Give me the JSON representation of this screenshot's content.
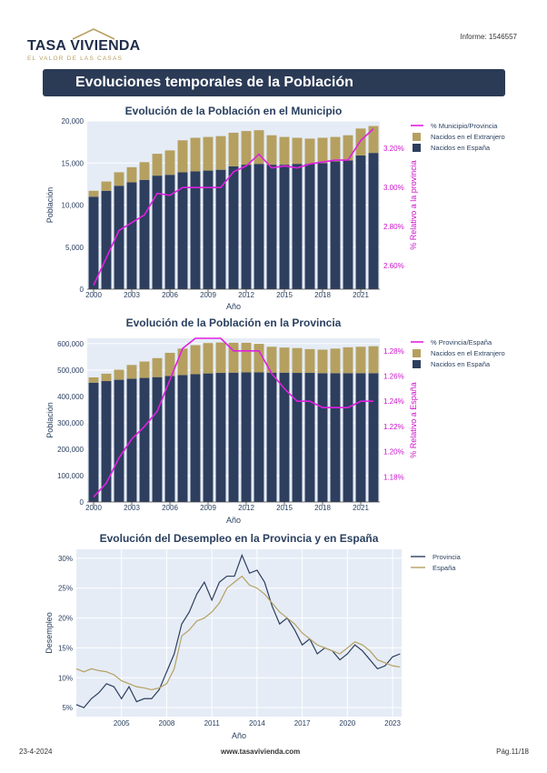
{
  "header": {
    "brand": "TASA VIVIENDA",
    "tagline": "EL VALOR DE LAS CASAS",
    "report_id": "Informe: 1546557"
  },
  "banner": {
    "title": "Evoluciones temporales de la Población"
  },
  "footer": {
    "date": "23-4-2024",
    "website": "www.tasavivienda.com",
    "page": "Pág.11/18"
  },
  "colors": {
    "spain": "#2d3e5e",
    "foreign": "#b5a060",
    "pct": "#e020e0",
    "grid_bg": "#e5ecf6",
    "prov_line": "#2d3e5e",
    "esp_line": "#b5a060"
  },
  "chart_data": [
    {
      "type": "bar",
      "title": "Evolución de la Población en el Municipio",
      "xlabel": "Año",
      "ylabel": "Población",
      "y2label": "% Relativo a la provincia",
      "legend": [
        "% Municipio/Provincia",
        "Nacidos en el Extranjero",
        "Nacidos en España"
      ],
      "x": [
        2000,
        2001,
        2002,
        2003,
        2004,
        2005,
        2006,
        2007,
        2008,
        2009,
        2010,
        2011,
        2012,
        2013,
        2014,
        2015,
        2016,
        2017,
        2018,
        2019,
        2020,
        2021,
        2022
      ],
      "xticks": [
        2000,
        2003,
        2006,
        2009,
        2012,
        2015,
        2018,
        2021
      ],
      "ylim": [
        0,
        20000
      ],
      "yticks": [
        0,
        5000,
        10000,
        15000,
        20000
      ],
      "ytick_labels": [
        "0",
        "5,000",
        "10,000",
        "15,000",
        "20,000"
      ],
      "y2lim": [
        2.48,
        3.34
      ],
      "y2ticks": [
        2.6,
        2.8,
        3.0,
        3.2
      ],
      "y2tick_labels": [
        "2.60%",
        "2.80%",
        "3.00%",
        "3.20%"
      ],
      "series": [
        {
          "name": "Nacidos en España",
          "values": [
            11000,
            11700,
            12300,
            12700,
            13000,
            13500,
            13600,
            13900,
            14000,
            14100,
            14200,
            14600,
            14800,
            14900,
            14800,
            14800,
            14900,
            14900,
            15000,
            15200,
            15300,
            15900,
            16200
          ]
        },
        {
          "name": "Nacidos en el Extranjero",
          "values": [
            700,
            1100,
            1600,
            1800,
            2100,
            2600,
            2900,
            3800,
            4000,
            4000,
            4000,
            4000,
            4000,
            4000,
            3500,
            3300,
            3100,
            3000,
            3000,
            2900,
            3000,
            3200,
            3200
          ]
        },
        {
          "name": "% Municipio/Provincia",
          "values": [
            2.5,
            2.64,
            2.78,
            2.82,
            2.86,
            2.97,
            2.96,
            3.0,
            3.0,
            3.0,
            3.0,
            3.08,
            3.11,
            3.17,
            3.1,
            3.11,
            3.1,
            3.12,
            3.13,
            3.14,
            3.14,
            3.24,
            3.3
          ]
        }
      ]
    },
    {
      "type": "bar",
      "title": "Evolución de la Población en la Provincia",
      "xlabel": "Año",
      "ylabel": "Población",
      "y2label": "% Relativo a España",
      "legend": [
        "% Provincia/España",
        "Nacidos en el Extranjero",
        "Nacidos en España"
      ],
      "x": [
        2000,
        2001,
        2002,
        2003,
        2004,
        2005,
        2006,
        2007,
        2008,
        2009,
        2010,
        2011,
        2012,
        2013,
        2014,
        2015,
        2016,
        2017,
        2018,
        2019,
        2020,
        2021,
        2022
      ],
      "xticks": [
        2000,
        2003,
        2006,
        2009,
        2012,
        2015,
        2018,
        2021
      ],
      "ylim": [
        0,
        620000
      ],
      "yticks": [
        0,
        100000,
        200000,
        300000,
        400000,
        500000,
        600000
      ],
      "ytick_labels": [
        "0",
        "100,000",
        "200,000",
        "300,000",
        "400,000",
        "500,000",
        "600,000"
      ],
      "y2lim": [
        1.16,
        1.29
      ],
      "y2ticks": [
        1.18,
        1.2,
        1.22,
        1.24,
        1.26,
        1.28
      ],
      "y2tick_labels": [
        "1.18%",
        "1.20%",
        "1.22%",
        "1.24%",
        "1.26%",
        "1.28%"
      ],
      "series": [
        {
          "name": "Nacidos en España",
          "values": [
            452000,
            458000,
            463000,
            467000,
            470000,
            473000,
            477000,
            481000,
            484000,
            487000,
            489000,
            490000,
            491000,
            491000,
            490000,
            490000,
            489000,
            489000,
            488000,
            488000,
            488000,
            488000,
            488000
          ]
        },
        {
          "name": "Nacidos en el Extranjero",
          "values": [
            20000,
            28000,
            38000,
            52000,
            62000,
            72000,
            88000,
            100000,
            110000,
            115000,
            115000,
            113000,
            112000,
            108000,
            98000,
            95000,
            94000,
            90000,
            89000,
            93000,
            98000,
            100000,
            102000
          ]
        },
        {
          "name": "% Provincia/España",
          "values": [
            1.164,
            1.175,
            1.195,
            1.21,
            1.22,
            1.232,
            1.257,
            1.282,
            1.29,
            1.29,
            1.29,
            1.28,
            1.28,
            1.28,
            1.262,
            1.25,
            1.24,
            1.24,
            1.235,
            1.235,
            1.235,
            1.24,
            1.24
          ]
        }
      ]
    },
    {
      "type": "line",
      "title": "Evolución del Desempleo en la Provincia y en España",
      "xlabel": "Año",
      "ylabel": "Desempleo",
      "xlim": [
        2002,
        2023.6
      ],
      "xticks": [
        2005,
        2008,
        2011,
        2014,
        2017,
        2020,
        2023
      ],
      "ylim": [
        3.5,
        31.5
      ],
      "yticks": [
        5,
        10,
        15,
        20,
        25,
        30
      ],
      "ytick_labels": [
        "5%",
        "10%",
        "15%",
        "20%",
        "25%",
        "30%"
      ],
      "legend": [
        "Provincia",
        "España"
      ],
      "series": [
        {
          "name": "Provincia",
          "x": [
            2002,
            2002.5,
            2003,
            2003.5,
            2004,
            2004.5,
            2005,
            2005.5,
            2006,
            2006.5,
            2007,
            2007.5,
            2008,
            2008.5,
            2009,
            2009.5,
            2010,
            2010.5,
            2011,
            2011.5,
            2012,
            2012.5,
            2013,
            2013.5,
            2014,
            2014.5,
            2015,
            2015.5,
            2016,
            2016.5,
            2017,
            2017.5,
            2018,
            2018.5,
            2019,
            2019.5,
            2020,
            2020.5,
            2021,
            2021.5,
            2022,
            2022.5,
            2023,
            2023.5
          ],
          "values": [
            5.5,
            5,
            6.5,
            7.5,
            9,
            8.5,
            6.5,
            8.5,
            6,
            6.5,
            6.5,
            8,
            11,
            14,
            19,
            21,
            24,
            26,
            23,
            26,
            27,
            27,
            30.5,
            27.5,
            28,
            26,
            22,
            19,
            20,
            18,
            15.5,
            16.5,
            14,
            15,
            14.5,
            13,
            14,
            15.5,
            14.5,
            13,
            11.5,
            12,
            13.5,
            14
          ]
        },
        {
          "name": "España",
          "x": [
            2002,
            2002.5,
            2003,
            2003.5,
            2004,
            2004.5,
            2005,
            2005.5,
            2006,
            2006.5,
            2007,
            2007.5,
            2008,
            2008.5,
            2009,
            2009.5,
            2010,
            2010.5,
            2011,
            2011.5,
            2012,
            2012.5,
            2013,
            2013.5,
            2014,
            2014.5,
            2015,
            2015.5,
            2016,
            2016.5,
            2017,
            2017.5,
            2018,
            2018.5,
            2019,
            2019.5,
            2020,
            2020.5,
            2021,
            2021.5,
            2022,
            2022.5,
            2023,
            2023.5
          ],
          "values": [
            11.5,
            11,
            11.5,
            11.2,
            11,
            10.5,
            9.5,
            9,
            8.5,
            8.3,
            8,
            8.3,
            9,
            11.5,
            17,
            18,
            19.5,
            20,
            21,
            22.5,
            25,
            26,
            27,
            25.5,
            25,
            24,
            22.5,
            21,
            20,
            19,
            17.5,
            16.5,
            15.5,
            15,
            14.5,
            14,
            15,
            16,
            15.5,
            14.5,
            13,
            12.5,
            12,
            11.8
          ]
        }
      ]
    }
  ]
}
